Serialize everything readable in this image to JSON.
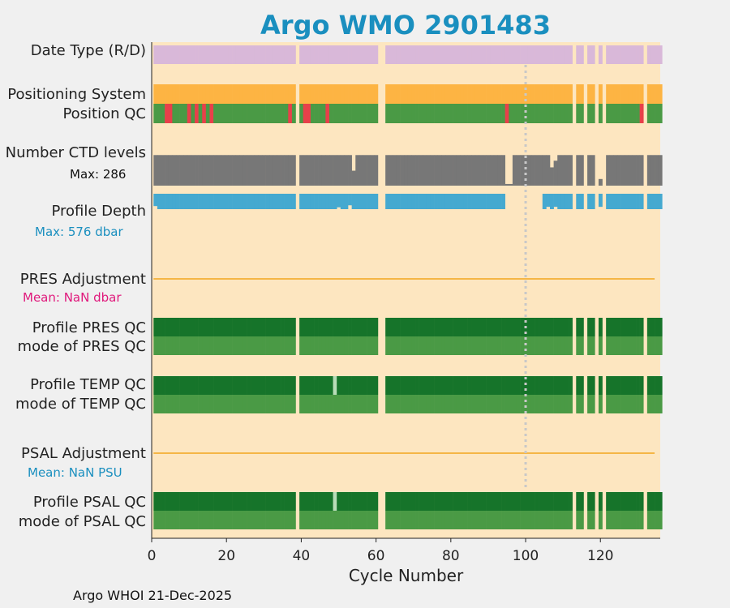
{
  "title": "Argo WMO 2901483",
  "footer": "Argo WHOI 21-Dec-2025",
  "colors": {
    "background": "#fde6c0",
    "date_type": "#d9b8d9",
    "positioning": "#fdb443",
    "qc_good": "#4a9a45",
    "qc_dark": "#16742a",
    "qc_bad": "#e8404a",
    "qc_light": "#b8dcb8",
    "ctd": "#777777",
    "depth": "#45a9d0",
    "adjustment_line": "#f5b646",
    "title": "#1a8fbf",
    "magenta": "#e0197c",
    "dotted": "#c8c8c8"
  },
  "rows": {
    "date_type": {
      "label": "Date Type (R/D)"
    },
    "positioning": {
      "label": "Positioning System"
    },
    "position_qc": {
      "label": "Position QC"
    },
    "ctd_levels": {
      "label": "Number CTD levels",
      "sublabel": "Max: 286"
    },
    "profile_depth": {
      "label": "Profile Depth",
      "sublabel": "Max:  576 dbar"
    },
    "pres_adj": {
      "label": "PRES Adjustment",
      "sublabel": "Mean:  NaN dbar"
    },
    "profile_pres_qc": {
      "label": "Profile PRES QC"
    },
    "mode_pres_qc": {
      "label": "mode of PRES QC"
    },
    "profile_temp_qc": {
      "label": "Profile TEMP QC"
    },
    "mode_temp_qc": {
      "label": "mode of TEMP QC"
    },
    "psal_adj": {
      "label": "PSAL Adjustment",
      "sublabel": "Mean:  NaN PSU"
    },
    "profile_psal_qc": {
      "label": "Profile PSAL QC"
    },
    "mode_psal_qc": {
      "label": "mode of PSAL QC"
    }
  },
  "chart_data": {
    "type": "table",
    "xlabel": "Cycle Number",
    "xlim": [
      0,
      136
    ],
    "xticks": [
      0,
      20,
      40,
      60,
      80,
      100,
      120
    ],
    "cycles_present": {
      "start": 1,
      "end": 136,
      "missing": [
        39,
        61,
        62,
        113,
        116,
        119,
        121,
        132
      ]
    },
    "dotted_marker_cycle": 100,
    "position_qc_bad_cycles": [
      4,
      5,
      10,
      12,
      14,
      16,
      37,
      41,
      42,
      47,
      95,
      131
    ],
    "temp_qc_light_cycles": [
      49
    ],
    "psal_qc_light_cycles": [
      49
    ],
    "ctd_levels_max": 286,
    "ctd_levels_dip_cycles": [
      {
        "cycle": 54,
        "frac": 0.45
      },
      {
        "cycle": 95,
        "frac": 0.05
      },
      {
        "cycle": 96,
        "frac": 0.05
      },
      {
        "cycle": 107,
        "frac": 0.55
      },
      {
        "cycle": 108,
        "frac": 0.75
      },
      {
        "cycle": 120,
        "frac": 0.2
      }
    ],
    "profile_depth_max_dbar": 576,
    "profile_depth_dip_cycles": [
      {
        "cycle": 1,
        "frac": 0.8
      },
      {
        "cycle": 50,
        "frac": 0.88
      },
      {
        "cycle": 53,
        "frac": 0.75
      },
      {
        "cycle": 95,
        "frac": 0.0
      },
      {
        "cycle": 96,
        "frac": 0.0
      },
      {
        "cycle": 97,
        "frac": 0.0
      },
      {
        "cycle": 98,
        "frac": 0.0
      },
      {
        "cycle": 99,
        "frac": 0.0
      },
      {
        "cycle": 100,
        "frac": 0.0
      },
      {
        "cycle": 101,
        "frac": 0.0
      },
      {
        "cycle": 102,
        "frac": 0.0
      },
      {
        "cycle": 103,
        "frac": 0.0
      },
      {
        "cycle": 104,
        "frac": 0.0
      },
      {
        "cycle": 106,
        "frac": 0.85
      },
      {
        "cycle": 108,
        "frac": 0.85
      },
      {
        "cycle": 120,
        "frac": 0.85
      }
    ],
    "pres_adjustment_mean": "NaN dbar",
    "psal_adjustment_mean": "NaN PSU"
  }
}
